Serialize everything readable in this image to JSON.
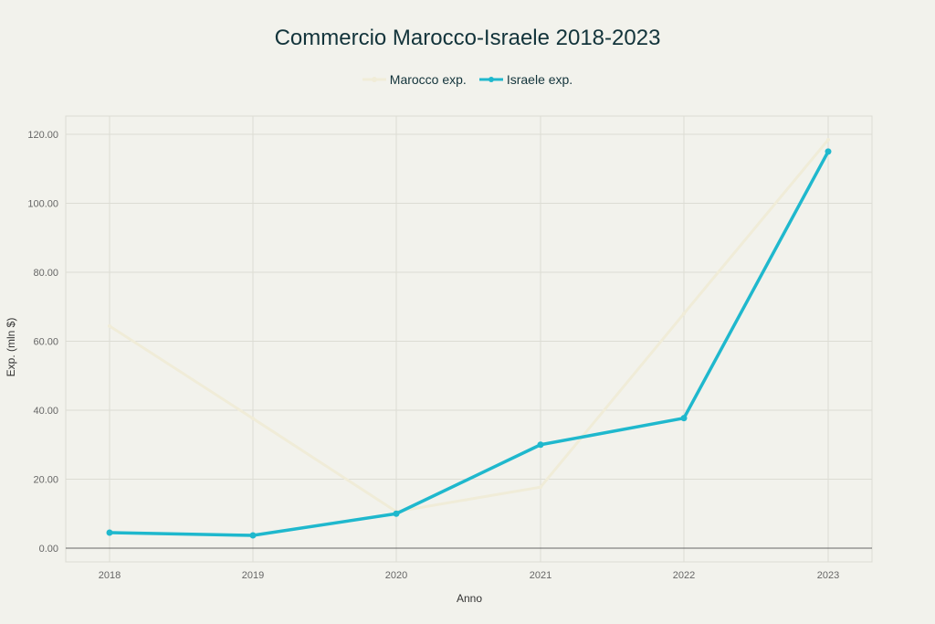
{
  "chart_data": {
    "type": "line",
    "title": "Commercio Marocco-Israele 2018-2023",
    "xlabel": "Anno",
    "ylabel": "Exp. (mln $)",
    "categories": [
      "2018",
      "2019",
      "2020",
      "2021",
      "2022",
      "2023"
    ],
    "ylim": [
      0,
      120
    ],
    "yticks": [
      "0.00",
      "20.00",
      "40.00",
      "60.00",
      "80.00",
      "100.00",
      "120.00"
    ],
    "grid": true,
    "legend_position": "top-center",
    "series": [
      {
        "name": "Marocco exp.",
        "color": "#f0ecd8",
        "values": [
          64.4,
          37.6,
          10.6,
          17.7,
          68.0,
          118.4
        ]
      },
      {
        "name": "Israele exp.",
        "color": "#1fb8cd",
        "values": [
          4.5,
          3.7,
          10.0,
          30.0,
          37.7,
          115.0
        ]
      }
    ]
  }
}
